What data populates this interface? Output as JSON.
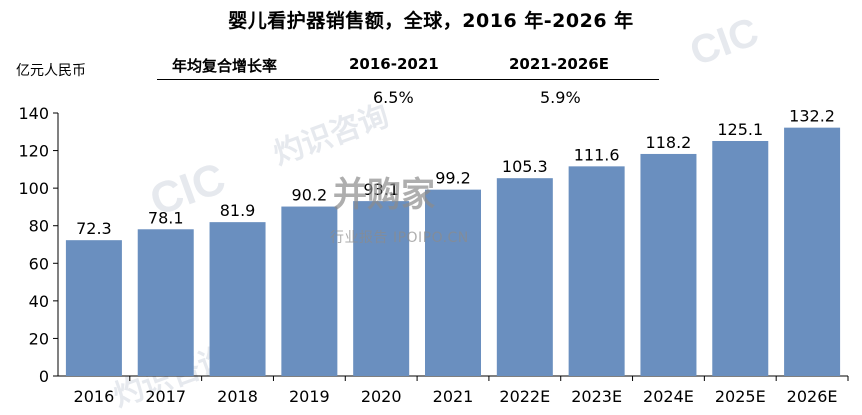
{
  "chart_data": {
    "type": "bar",
    "title": "婴儿看护器销售额，全球，2016 年-2026 年",
    "ylabel": "亿元人民币",
    "categories": [
      "2016",
      "2017",
      "2018",
      "2019",
      "2020",
      "2021",
      "2022E",
      "2023E",
      "2024E",
      "2025E",
      "2026E"
    ],
    "values": [
      72.3,
      78.1,
      81.9,
      90.2,
      93.1,
      99.2,
      105.3,
      111.6,
      118.2,
      125.1,
      132.2
    ],
    "data_labels": [
      "72.3",
      "78.1",
      "81.9",
      "90.2",
      "93.1",
      "99.2",
      "105.3",
      "111.6",
      "118.2",
      "125.1",
      "132.2"
    ],
    "ylim": [
      0,
      140
    ],
    "yticks": [
      0,
      20,
      40,
      60,
      80,
      100,
      120,
      140
    ],
    "bar_color": "#6a8fbf",
    "grid": false,
    "legend": "none"
  },
  "cagr_table": {
    "row_label": "年均复合增长率",
    "periods": [
      "2016-2021",
      "2021-2026E"
    ],
    "rates": [
      "6.5%",
      "5.9%"
    ]
  },
  "watermarks": {
    "brand": "CIC",
    "brand_cn": "灼识咨询",
    "logo_text": "并购家",
    "logo_sub": "行业报告 IPOIPO.CN"
  }
}
